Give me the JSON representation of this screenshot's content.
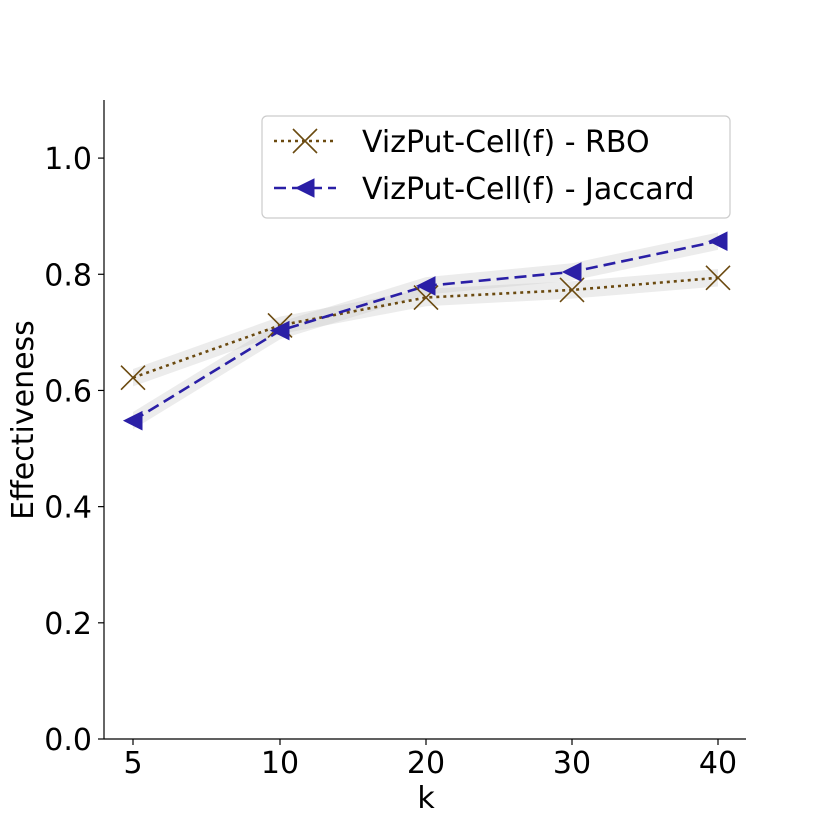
{
  "chart_data": {
    "type": "line",
    "title": "",
    "xlabel": "k",
    "ylabel": "Effectiveness",
    "categories": [
      "5",
      "10",
      "20",
      "30",
      "40"
    ],
    "ylim": [
      0.0,
      1.1
    ],
    "yticks": [
      0.0,
      0.2,
      0.4,
      0.6,
      0.8,
      1.0
    ],
    "ytick_labels": [
      "0.0",
      "0.2",
      "0.4",
      "0.6",
      "0.8",
      "1.0"
    ],
    "legend_position": "top-right",
    "grid": false,
    "series": [
      {
        "name": "VizPut-Cell(f) - RBO",
        "values": [
          0.622,
          0.712,
          0.76,
          0.773,
          0.794
        ],
        "band": 0.015,
        "color": "#6b4a10",
        "dash": "dotted",
        "marker": "x"
      },
      {
        "name": "VizPut-Cell(f) - Jaccard",
        "values": [
          0.548,
          0.703,
          0.78,
          0.804,
          0.857
        ],
        "band": 0.015,
        "color": "#2a1fa6",
        "dash": "dashed",
        "marker": "triangle-left"
      }
    ]
  }
}
